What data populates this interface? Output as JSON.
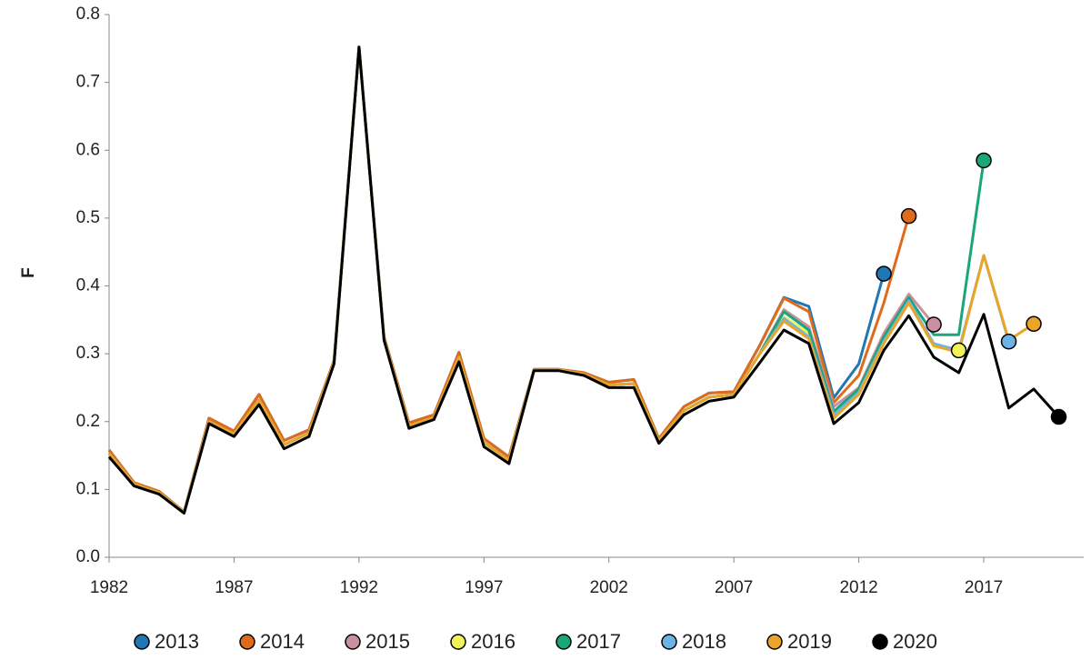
{
  "chart_data": {
    "type": "line",
    "ylabel": "F",
    "x": [
      1982,
      1983,
      1984,
      1985,
      1986,
      1987,
      1988,
      1989,
      1990,
      1991,
      1992,
      1993,
      1994,
      1995,
      1996,
      1997,
      1998,
      1999,
      2000,
      2001,
      2002,
      2003,
      2004,
      2005,
      2006,
      2007,
      2008,
      2009,
      2010,
      2011,
      2012,
      2013,
      2014,
      2015,
      2016,
      2017,
      2018,
      2019,
      2020
    ],
    "xlim": [
      1982,
      2021
    ],
    "xticks": [
      1982,
      1987,
      1992,
      1997,
      2002,
      2007,
      2012,
      2017
    ],
    "ylim": [
      0,
      0.8
    ],
    "yticks": [
      {
        "value": 0,
        "label": "0.0"
      },
      0.1,
      0.2,
      0.3,
      0.4,
      0.5,
      0.6,
      0.7,
      0.8
    ],
    "legend": "bottom",
    "series": [
      {
        "name": "2013",
        "color": "#1f77b4",
        "values": [
          0.158,
          0.11,
          0.097,
          0.067,
          0.205,
          0.186,
          0.24,
          0.172,
          0.188,
          0.29,
          0.752,
          0.325,
          0.198,
          0.21,
          0.302,
          0.175,
          0.148,
          0.277,
          0.277,
          0.272,
          0.258,
          0.262,
          0.175,
          0.222,
          0.242,
          0.244,
          0.31,
          0.383,
          0.37,
          0.235,
          0.285,
          0.418,
          null,
          null,
          null,
          null,
          null,
          null,
          null
        ]
      },
      {
        "name": "2014",
        "color": "#e06a1b",
        "values": [
          0.158,
          0.11,
          0.097,
          0.067,
          0.205,
          0.186,
          0.24,
          0.172,
          0.188,
          0.29,
          0.752,
          0.325,
          0.198,
          0.21,
          0.302,
          0.175,
          0.148,
          0.277,
          0.277,
          0.272,
          0.258,
          0.262,
          0.175,
          0.222,
          0.242,
          0.244,
          0.31,
          0.382,
          0.362,
          0.228,
          0.268,
          0.375,
          0.503,
          null,
          null,
          null,
          null,
          null,
          null
        ]
      },
      {
        "name": "2015",
        "color": "#c9919f",
        "values": [
          0.153,
          0.108,
          0.095,
          0.066,
          0.2,
          0.182,
          0.232,
          0.166,
          0.183,
          0.287,
          0.752,
          0.322,
          0.194,
          0.206,
          0.295,
          0.169,
          0.143,
          0.276,
          0.276,
          0.27,
          0.254,
          0.256,
          0.172,
          0.216,
          0.236,
          0.24,
          0.298,
          0.365,
          0.34,
          0.222,
          0.25,
          0.33,
          0.388,
          0.343,
          null,
          null,
          null,
          null,
          null
        ]
      },
      {
        "name": "2016",
        "color": "#f2f25a",
        "values": [
          0.153,
          0.108,
          0.095,
          0.066,
          0.2,
          0.182,
          0.232,
          0.166,
          0.183,
          0.287,
          0.752,
          0.322,
          0.194,
          0.206,
          0.295,
          0.169,
          0.143,
          0.276,
          0.276,
          0.27,
          0.254,
          0.256,
          0.172,
          0.216,
          0.236,
          0.24,
          0.298,
          0.355,
          0.33,
          0.212,
          0.245,
          0.32,
          0.38,
          0.31,
          0.305,
          null,
          null,
          null,
          null
        ]
      },
      {
        "name": "2017",
        "color": "#1aa57a",
        "values": [
          0.153,
          0.108,
          0.095,
          0.066,
          0.2,
          0.182,
          0.232,
          0.166,
          0.183,
          0.287,
          0.752,
          0.322,
          0.194,
          0.206,
          0.295,
          0.169,
          0.143,
          0.276,
          0.276,
          0.27,
          0.254,
          0.256,
          0.172,
          0.216,
          0.236,
          0.24,
          0.298,
          0.362,
          0.335,
          0.215,
          0.248,
          0.325,
          0.383,
          0.328,
          0.328,
          0.585,
          null,
          null,
          null
        ]
      },
      {
        "name": "2018",
        "color": "#6cb4e6",
        "values": [
          0.153,
          0.108,
          0.095,
          0.066,
          0.2,
          0.182,
          0.232,
          0.166,
          0.183,
          0.287,
          0.752,
          0.322,
          0.194,
          0.206,
          0.295,
          0.169,
          0.143,
          0.276,
          0.276,
          0.27,
          0.254,
          0.256,
          0.172,
          0.216,
          0.236,
          0.24,
          0.298,
          0.352,
          0.325,
          0.21,
          0.243,
          0.318,
          0.378,
          0.315,
          0.305,
          0.445,
          0.318,
          null,
          null
        ]
      },
      {
        "name": "2019",
        "color": "#e8a52a",
        "values": [
          0.153,
          0.108,
          0.095,
          0.066,
          0.2,
          0.182,
          0.232,
          0.166,
          0.183,
          0.287,
          0.752,
          0.322,
          0.194,
          0.206,
          0.295,
          0.169,
          0.143,
          0.276,
          0.276,
          0.27,
          0.254,
          0.256,
          0.172,
          0.216,
          0.236,
          0.24,
          0.298,
          0.348,
          0.322,
          0.205,
          0.24,
          0.315,
          0.375,
          0.312,
          0.302,
          0.445,
          0.32,
          0.344,
          null
        ]
      },
      {
        "name": "2020",
        "color": "#000000",
        "values": [
          0.148,
          0.105,
          0.093,
          0.065,
          0.197,
          0.178,
          0.225,
          0.16,
          0.178,
          0.285,
          0.752,
          0.32,
          0.19,
          0.203,
          0.288,
          0.163,
          0.138,
          0.275,
          0.275,
          0.268,
          0.25,
          0.25,
          0.168,
          0.21,
          0.23,
          0.236,
          0.285,
          0.335,
          0.315,
          0.197,
          0.228,
          0.305,
          0.356,
          0.295,
          0.272,
          0.358,
          0.22,
          0.248,
          0.207
        ]
      }
    ]
  }
}
